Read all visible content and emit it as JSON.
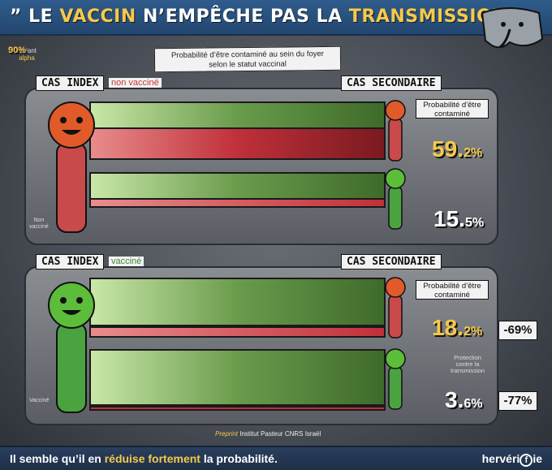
{
  "header": {
    "title_open": "” LE ",
    "title_hl1": "VACCIN",
    "title_mid": " N’EMPÊCHE PAS LA ",
    "title_hl2": "TRANSMISSION",
    "title_close": " ”"
  },
  "variant": {
    "pct": "90%",
    "line1": "variant",
    "line2": "alpha"
  },
  "caption": {
    "line1": "Probabilité d’être contaminé au sein du foyer",
    "line2": "selon le statut vaccinal"
  },
  "panel_unvaccinated": {
    "index_label": "CAS INDEX",
    "index_tag": "non vacciné",
    "secondary_label": "CAS SECONDAIRE",
    "prob_label_line1": "Probabilité d’être",
    "prob_label_line2": "contaminé",
    "unvacc_secondary_pct_main": "59.",
    "unvacc_secondary_pct_dec": "2%",
    "vacc_secondary_pct_main": "15.",
    "vacc_secondary_pct_dec": "5%",
    "note_line1": "Non",
    "note_line2": "vacciné"
  },
  "panel_vaccinated": {
    "index_label": "CAS INDEX",
    "index_tag": "vacciné",
    "secondary_label": "CAS SECONDAIRE",
    "prob_label_line1": "Probabilité d’être",
    "prob_label_line2": "contaminé",
    "unvacc_secondary_pct_main": "18.",
    "unvacc_secondary_pct_dec": "2%",
    "vacc_secondary_pct_main": "3.",
    "vacc_secondary_pct_dec": "6%",
    "reduction_1": "-69%",
    "reduction_2": "-77%",
    "protection_line1": "Protection",
    "protection_line2": "contre la",
    "protection_line3": "transmission",
    "note": "Vacciné"
  },
  "source": {
    "prefix": "Preprint",
    "text": " Institut Pasteur CNRS Israël"
  },
  "footer": {
    "text_a": "Il semble qu’il en ",
    "text_hl": "réduise fortement",
    "text_b": " la probabilité.",
    "brand_a": "hervéri",
    "brand_f": "f",
    "brand_b": "ie"
  },
  "colors": {
    "red": "#c0303a",
    "green": "#3a9a2e",
    "yellow": "#f7c94a",
    "blue": "#2f5c8c"
  },
  "icons": [
    "virus-red-icon",
    "virus-green-icon",
    "elephant-logo"
  ]
}
